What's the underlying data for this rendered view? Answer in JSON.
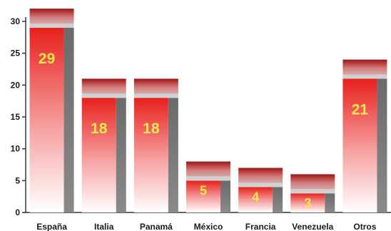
{
  "chart_data": {
    "type": "bar",
    "categories": [
      "España",
      "Italia",
      "Panamá",
      "México",
      "Francia",
      "Venezuela",
      "Otros"
    ],
    "values": [
      29,
      18,
      18,
      5,
      4,
      3,
      21
    ],
    "data_labels": [
      "29",
      "18",
      "18",
      "5",
      "4",
      "3",
      "21"
    ],
    "title": "",
    "xlabel": "",
    "ylabel": "",
    "ylim": [
      0,
      30
    ],
    "yticks": [
      0,
      5,
      10,
      15,
      20,
      25,
      30
    ],
    "ytick_labels": [
      "0",
      "5",
      "10",
      "15",
      "20",
      "25",
      "30"
    ],
    "grid": false,
    "legend": "none",
    "colors": {
      "bar_top": "#e8201c",
      "bar_bottom": "#ffffff",
      "bar_side": "#7a7a7a",
      "cap_dark": "#9c1414",
      "cap_light": "#c0c0c0",
      "label": "#f2e84b",
      "axis": "#333333"
    }
  }
}
